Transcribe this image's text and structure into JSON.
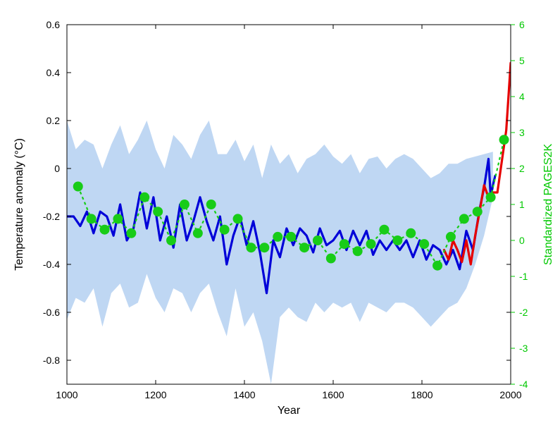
{
  "chart": {
    "type": "line",
    "background_color": "#ffffff",
    "plot_bg": "#ffffff",
    "frame_color": "#000000",
    "box_on": true,
    "x": {
      "label": "Year",
      "lim": [
        1000,
        2000
      ],
      "ticks": [
        1000,
        1200,
        1400,
        1600,
        1800,
        2000
      ],
      "tick_fontsize": 14,
      "label_fontsize": 16,
      "label_color": "#000000"
    },
    "y_left": {
      "label": "Temperature anomaly (°C)",
      "lim": [
        -0.9,
        0.6
      ],
      "ticks": [
        -0.8,
        -0.6,
        -0.4,
        -0.2,
        0,
        0.2,
        0.4,
        0.6
      ],
      "tick_labels": [
        "-0.8",
        "-0.6",
        "-0.4",
        "-0.2",
        "0",
        "0.2",
        "0.4",
        "0.6"
      ],
      "tick_fontsize": 14,
      "label_fontsize": 16,
      "label_color": "#000000"
    },
    "y_right": {
      "label": "Standardized PAGES2K",
      "lim": [
        -4,
        6
      ],
      "ticks": [
        -4,
        -3,
        -2,
        -1,
        0,
        1,
        2,
        3,
        4,
        5,
        6
      ],
      "tick_fontsize": 14,
      "label_fontsize": 16,
      "color": "#00c800"
    },
    "uncertainty_band": {
      "fill": "#bcd5f2",
      "opacity": 0.95,
      "x": [
        1000,
        1020,
        1040,
        1060,
        1080,
        1100,
        1120,
        1140,
        1160,
        1180,
        1200,
        1220,
        1240,
        1260,
        1280,
        1300,
        1320,
        1340,
        1360,
        1380,
        1400,
        1420,
        1440,
        1460,
        1480,
        1500,
        1520,
        1540,
        1560,
        1580,
        1600,
        1620,
        1640,
        1660,
        1680,
        1700,
        1720,
        1740,
        1760,
        1780,
        1800,
        1820,
        1840,
        1860,
        1880,
        1900,
        1920,
        1940,
        1960
      ],
      "upper": [
        0.2,
        0.08,
        0.12,
        0.1,
        0.0,
        0.1,
        0.18,
        0.06,
        0.12,
        0.2,
        0.08,
        0.0,
        0.14,
        0.1,
        0.04,
        0.14,
        0.2,
        0.06,
        0.06,
        0.12,
        0.03,
        0.1,
        -0.04,
        0.1,
        0.02,
        0.06,
        -0.02,
        0.04,
        0.06,
        0.1,
        0.05,
        0.02,
        0.06,
        -0.02,
        0.04,
        0.05,
        0.0,
        0.04,
        0.06,
        0.04,
        0.0,
        -0.04,
        -0.02,
        0.02,
        0.02,
        0.04,
        0.05,
        0.06,
        0.07
      ],
      "lower": [
        -0.63,
        -0.54,
        -0.56,
        -0.5,
        -0.66,
        -0.52,
        -0.48,
        -0.58,
        -0.56,
        -0.44,
        -0.54,
        -0.6,
        -0.5,
        -0.52,
        -0.6,
        -0.52,
        -0.48,
        -0.6,
        -0.7,
        -0.5,
        -0.66,
        -0.6,
        -0.72,
        -0.9,
        -0.62,
        -0.58,
        -0.62,
        -0.64,
        -0.56,
        -0.6,
        -0.56,
        -0.58,
        -0.56,
        -0.64,
        -0.56,
        -0.58,
        -0.6,
        -0.56,
        -0.56,
        -0.58,
        -0.62,
        -0.66,
        -0.62,
        -0.58,
        -0.56,
        -0.5,
        -0.4,
        -0.28,
        -0.12
      ]
    },
    "series_blue": {
      "color": "#0000d8",
      "line_width": 3.2,
      "x": [
        1000,
        1015,
        1030,
        1045,
        1060,
        1075,
        1090,
        1105,
        1120,
        1135,
        1150,
        1165,
        1180,
        1195,
        1210,
        1225,
        1240,
        1255,
        1270,
        1285,
        1300,
        1315,
        1330,
        1345,
        1360,
        1375,
        1390,
        1405,
        1420,
        1435,
        1450,
        1465,
        1480,
        1495,
        1510,
        1525,
        1540,
        1555,
        1570,
        1585,
        1600,
        1615,
        1630,
        1645,
        1660,
        1675,
        1690,
        1705,
        1720,
        1735,
        1750,
        1765,
        1780,
        1795,
        1810,
        1825,
        1840,
        1855,
        1870,
        1885,
        1900,
        1915,
        1930,
        1940,
        1950,
        1955,
        1960,
        1965
      ],
      "y": [
        -0.2,
        -0.2,
        -0.24,
        -0.18,
        -0.27,
        -0.18,
        -0.2,
        -0.28,
        -0.15,
        -0.3,
        -0.25,
        -0.1,
        -0.25,
        -0.12,
        -0.3,
        -0.2,
        -0.33,
        -0.15,
        -0.3,
        -0.22,
        -0.12,
        -0.22,
        -0.3,
        -0.2,
        -0.4,
        -0.28,
        -0.2,
        -0.32,
        -0.22,
        -0.35,
        -0.52,
        -0.3,
        -0.37,
        -0.25,
        -0.32,
        -0.25,
        -0.28,
        -0.35,
        -0.25,
        -0.32,
        -0.3,
        -0.26,
        -0.34,
        -0.26,
        -0.32,
        -0.26,
        -0.36,
        -0.3,
        -0.34,
        -0.3,
        -0.34,
        -0.3,
        -0.37,
        -0.3,
        -0.38,
        -0.32,
        -0.34,
        -0.4,
        -0.34,
        -0.42,
        -0.26,
        -0.34,
        -0.17,
        -0.08,
        0.04,
        -0.12,
        -0.07,
        -0.03
      ]
    },
    "series_red": {
      "color": "#e60000",
      "line_width": 3.2,
      "x": [
        1850,
        1860,
        1870,
        1880,
        1890,
        1900,
        1910,
        1920,
        1930,
        1940,
        1950,
        1960,
        1970,
        1980,
        1990,
        2000
      ],
      "y": [
        -0.34,
        -0.38,
        -0.3,
        -0.34,
        -0.39,
        -0.3,
        -0.4,
        -0.28,
        -0.18,
        -0.07,
        -0.12,
        -0.1,
        -0.1,
        0.03,
        0.16,
        0.44
      ]
    },
    "series_green": {
      "color": "#18cc18",
      "marker_fill": "#18cc18",
      "marker_size": 7,
      "line_dash": "4 4",
      "line_width": 2.2,
      "axis": "right",
      "x": [
        1025,
        1055,
        1085,
        1115,
        1145,
        1175,
        1205,
        1235,
        1265,
        1295,
        1325,
        1355,
        1385,
        1415,
        1445,
        1475,
        1505,
        1535,
        1565,
        1595,
        1625,
        1655,
        1685,
        1715,
        1745,
        1775,
        1805,
        1835,
        1865,
        1895,
        1925,
        1955,
        1985
      ],
      "y": [
        1.5,
        0.6,
        0.3,
        0.6,
        0.2,
        1.2,
        0.8,
        0.0,
        1.0,
        0.2,
        1.0,
        0.3,
        0.6,
        -0.2,
        -0.2,
        0.1,
        0.1,
        -0.2,
        0.0,
        -0.5,
        -0.1,
        -0.3,
        -0.1,
        0.3,
        0.0,
        0.2,
        -0.1,
        -0.7,
        0.1,
        0.6,
        0.8,
        1.2,
        2.8
      ]
    }
  }
}
